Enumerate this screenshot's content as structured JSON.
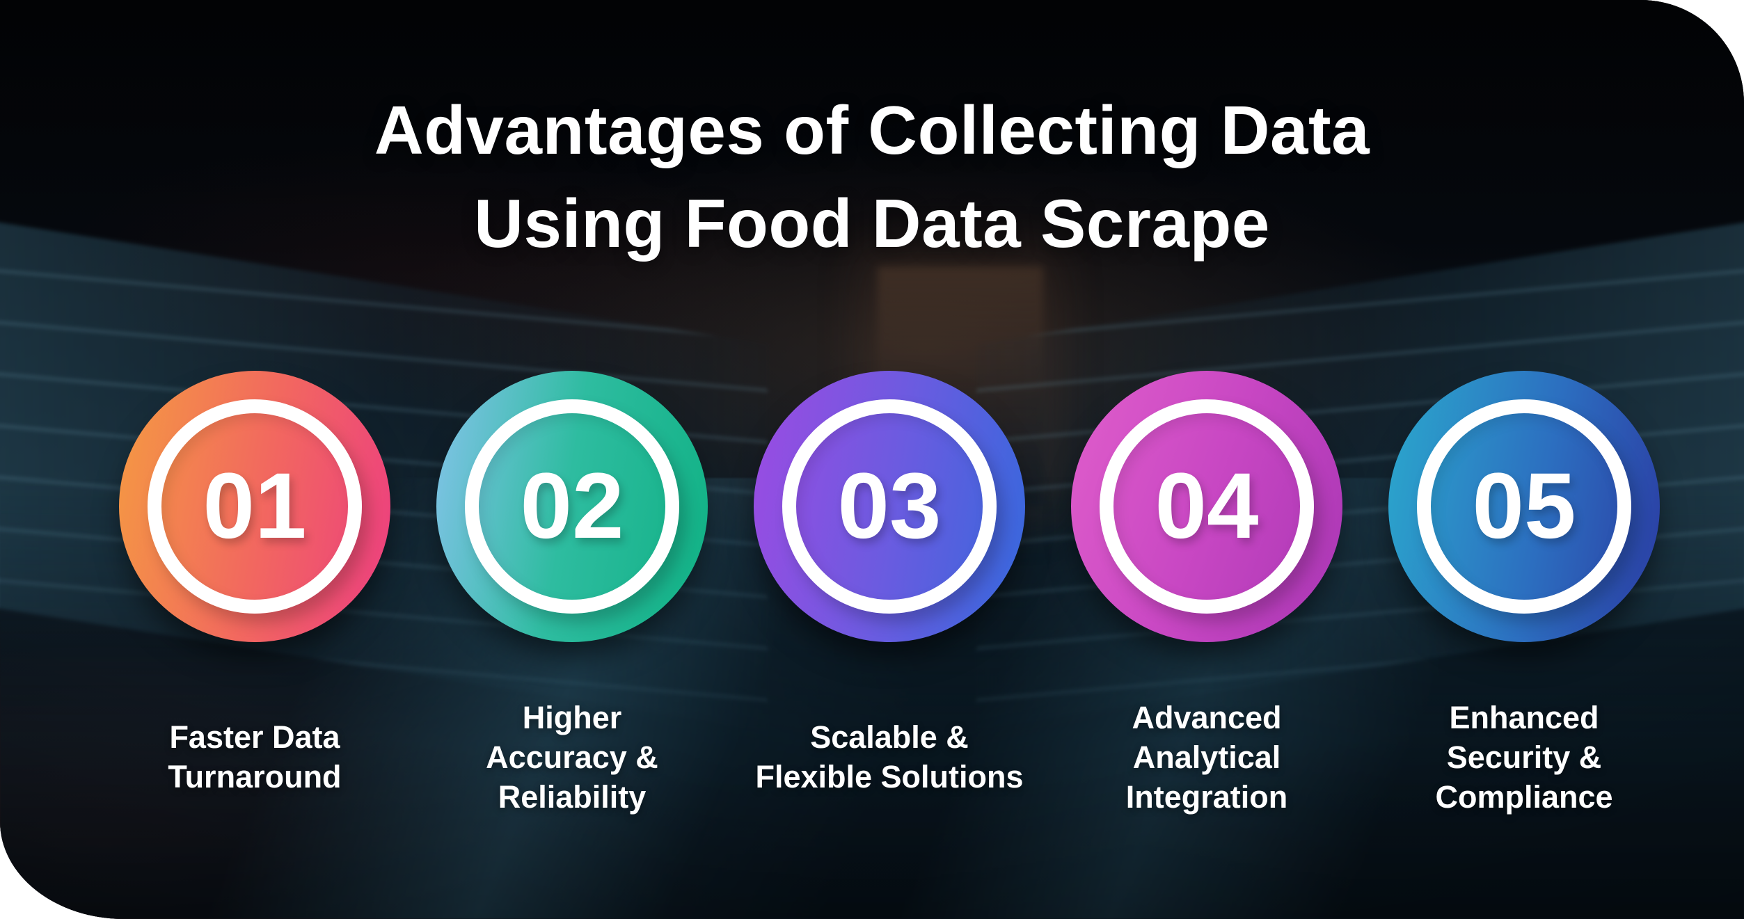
{
  "page": {
    "background_color": "#ffffff",
    "canvas_color": "#06090d",
    "text_color": "#ffffff"
  },
  "title": {
    "line1": "Advantages of Collecting Data",
    "line2": "Using Food Data Scrape"
  },
  "advantages": [
    {
      "number": "01",
      "label_lines": [
        "Faster Data",
        "Turnaround"
      ],
      "gradient": [
        "#F49A42",
        "#F2685F",
        "#EC3E80"
      ],
      "badge_style": "background:linear-gradient(100deg,#F49A42 0%,#F2685F 52%,#EC3E80 100%)"
    },
    {
      "number": "02",
      "label_lines": [
        "Higher",
        "Accuracy &",
        "Reliability"
      ],
      "gradient": [
        "#84C3EA",
        "#2EBCA0",
        "#10B184"
      ],
      "badge_style": "background:linear-gradient(100deg,#84C3EA 0%,#2EBCA0 48%,#10B184 100%)"
    },
    {
      "number": "03",
      "label_lines": [
        "Scalable &",
        "Flexible Solutions"
      ],
      "gradient": [
        "#9C4BE2",
        "#6C5BE0",
        "#3568DC"
      ],
      "badge_style": "background:linear-gradient(100deg,#9C4BE2 0%,#6C5BE0 50%,#3568DC 100%)"
    },
    {
      "number": "04",
      "label_lines": [
        "Advanced",
        "Analytical",
        "Integration"
      ],
      "gradient": [
        "#E05ECB",
        "#C847C3",
        "#A936B4"
      ],
      "badge_style": "background:linear-gradient(110deg,#E05ECB 0%,#C847C3 50%,#A936B4 100%)"
    },
    {
      "number": "05",
      "label_lines": [
        "Enhanced",
        "Security &",
        "Compliance"
      ],
      "gradient": [
        "#2BA8CD",
        "#2C6FC0",
        "#2B3CA3"
      ],
      "badge_style": "background:linear-gradient(100deg,#2BA8CD 0%,#2C6FC0 55%,#2B3CA3 100%)"
    }
  ]
}
